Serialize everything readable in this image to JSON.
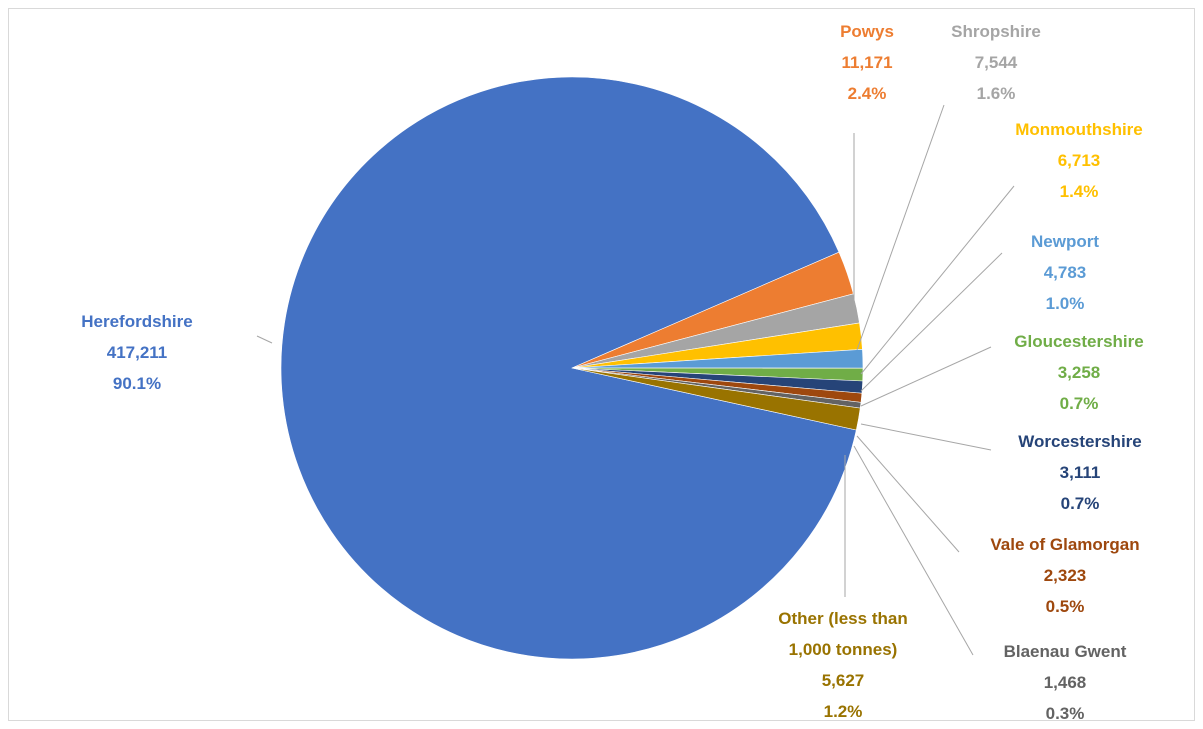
{
  "chart_data": {
    "type": "pie",
    "title": "",
    "legend": "none",
    "slices": [
      {
        "name": "Herefordshire",
        "value_label": "417,211",
        "percent_label": "90.1%",
        "value": 417211,
        "color": "#4472c4"
      },
      {
        "name": "Powys",
        "value_label": "11,171",
        "percent_label": "2.4%",
        "value": 11171,
        "color": "#ed7d31"
      },
      {
        "name": "Shropshire",
        "value_label": "7,544",
        "percent_label": "1.6%",
        "value": 7544,
        "color": "#a5a5a5"
      },
      {
        "name": "Monmouthshire",
        "value_label": "6,713",
        "percent_label": "1.4%",
        "value": 6713,
        "color": "#ffc000"
      },
      {
        "name": "Newport",
        "value_label": "4,783",
        "percent_label": "1.0%",
        "value": 4783,
        "color": "#5b9bd5"
      },
      {
        "name": "Gloucestershire",
        "value_label": "3,258",
        "percent_label": "0.7%",
        "value": 3258,
        "color": "#70ad47"
      },
      {
        "name": "Worcestershire",
        "value_label": "3,111",
        "percent_label": "0.7%",
        "value": 3111,
        "color": "#264478"
      },
      {
        "name": "Vale of Glamorgan",
        "value_label": "2,323",
        "percent_label": "0.5%",
        "value": 2323,
        "color": "#9e480e"
      },
      {
        "name": "Blaenau  Gwent",
        "value_label": "1,468",
        "percent_label": "0.3%",
        "value": 1468,
        "color": "#636363"
      },
      {
        "name": "Other (less than\n1,000 tonnes)",
        "value_label": "5,627",
        "percent_label": "1.2%",
        "value": 5627,
        "color": "#997300"
      }
    ]
  }
}
